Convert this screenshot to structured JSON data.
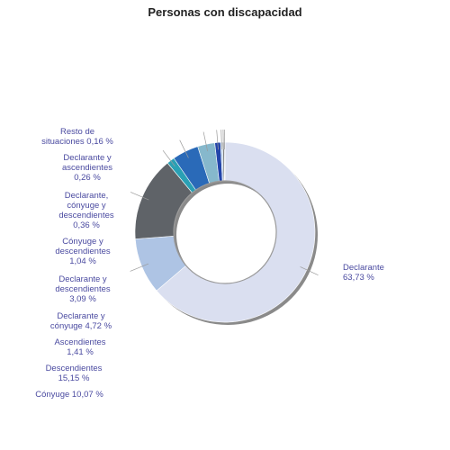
{
  "chart_data": {
    "type": "pie",
    "title": "Personas con discapacidad",
    "series": [
      {
        "name": "Declarante",
        "value": 63.73,
        "label": [
          "Declarante",
          "63,73 %"
        ],
        "color": "#dadff0"
      },
      {
        "name": "Cónyuge",
        "value": 10.07,
        "label": [
          "Cónyuge 10,07 %"
        ],
        "color": "#aec4e4"
      },
      {
        "name": "Descendientes",
        "value": 15.15,
        "label": [
          "Descendientes",
          "15,15 %"
        ],
        "color": "#5f6368"
      },
      {
        "name": "Ascendientes",
        "value": 1.41,
        "label": [
          "Ascendientes",
          "1,41 %"
        ],
        "color": "#2aa0b4"
      },
      {
        "name": "Declarante y cónyuge",
        "value": 4.72,
        "label": [
          "Declarante y",
          "cónyuge 4,72 %"
        ],
        "color": "#2a6ab8"
      },
      {
        "name": "Declarante y descendientes",
        "value": 3.09,
        "label": [
          "Declarante y",
          "descendientes",
          "3,09 %"
        ],
        "color": "#86b8cc"
      },
      {
        "name": "Cónyuge y descendientes",
        "value": 1.04,
        "label": [
          "Cónyuge y",
          "descendientes",
          "1,04 %"
        ],
        "color": "#2244aa"
      },
      {
        "name": "Declarante, cónyuge y descendientes",
        "value": 0.36,
        "label": [
          "Declarante,",
          "cónyuge y",
          "descendientes",
          "0,36 %"
        ],
        "color": "#b7cfe8"
      },
      {
        "name": "Declarante y ascendientes",
        "value": 0.26,
        "label": [
          "Declarante y",
          "ascendientes",
          "0,26 %"
        ],
        "color": "#4a4a4a"
      },
      {
        "name": "Resto de situaciones",
        "value": 0.16,
        "label": [
          "Resto de",
          "situaciones 0,16 %"
        ],
        "color": "#9aa8c0"
      }
    ]
  }
}
